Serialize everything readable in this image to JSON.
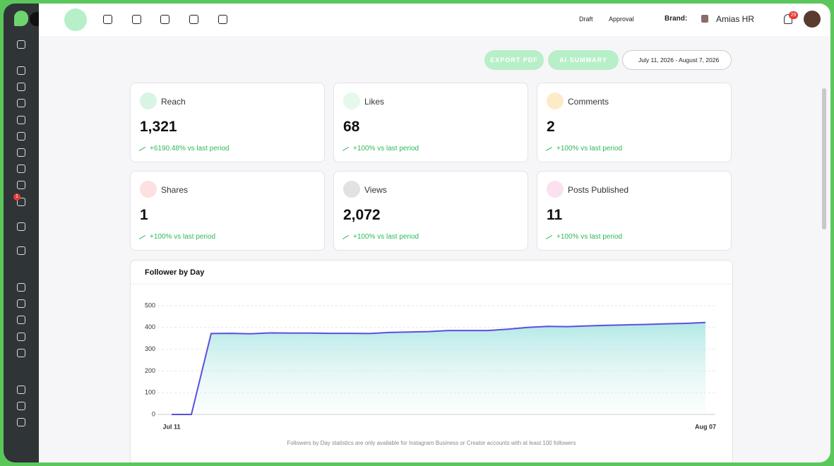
{
  "header": {
    "draft": "Draft",
    "approval": "Approval",
    "brand_label": "Brand:",
    "brand": "Amias HR",
    "notifications": "29"
  },
  "sidebar": {
    "inbox_badge": "1"
  },
  "toolbar": {
    "export": "EXPORT PDF",
    "ai_summary": "AI SUMMARY",
    "date_range": "July 11, 2026 - August 7, 2026"
  },
  "cards": [
    {
      "label": "Reach",
      "value": "1,321",
      "change": "+6190.48% vs last period"
    },
    {
      "label": "Likes",
      "value": "68",
      "change": "+100% vs last period"
    },
    {
      "label": "Comments",
      "value": "2",
      "change": "+100% vs last period"
    },
    {
      "label": "Shares",
      "value": "1",
      "change": "+100% vs last period"
    },
    {
      "label": "Views",
      "value": "2,072",
      "change": "+100% vs last period"
    },
    {
      "label": "Posts Published",
      "value": "11",
      "change": "+100% vs last period"
    }
  ],
  "chart_data": {
    "type": "area",
    "title": "Follower by Day",
    "categories": [
      "Jul 11",
      null,
      null,
      null,
      null,
      null,
      null,
      null,
      null,
      null,
      null,
      null,
      null,
      null,
      null,
      null,
      null,
      null,
      null,
      null,
      null,
      null,
      null,
      null,
      null,
      null,
      null,
      "Aug 07"
    ],
    "series": [
      {
        "name": "Followers",
        "color": "#5b4fe0",
        "values": [
          0,
          0,
          372,
          373,
          371,
          375,
          374,
          374,
          373,
          373,
          372,
          377,
          379,
          381,
          386,
          386,
          386,
          392,
          400,
          405,
          404,
          407,
          410,
          412,
          414,
          417,
          419,
          423
        ]
      }
    ],
    "ylim": [
      0,
      500
    ],
    "yticks": [
      0,
      100,
      200,
      300,
      400,
      500
    ],
    "grid": true,
    "footnote": "Followers by Day statistics are only available for Instagram Business or Creator accounts with at least 100 followers"
  }
}
